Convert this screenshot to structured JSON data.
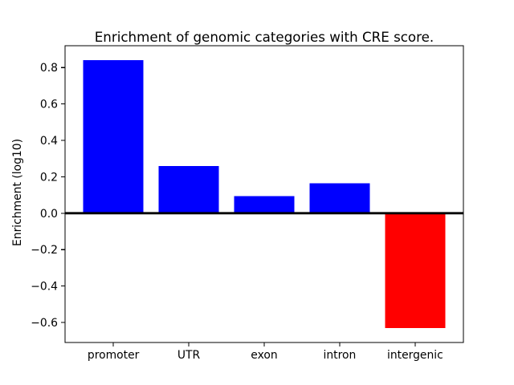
{
  "figure": {
    "background": "#ffffff"
  },
  "chart_data": {
    "type": "bar",
    "title": "Enrichment of genomic categories with CRE score.",
    "ylabel": "Enrichment (log10)",
    "xlabel": "",
    "categories": [
      "promoter",
      "UTR",
      "exon",
      "intron",
      "intergenic"
    ],
    "values": [
      0.84,
      0.26,
      0.095,
      0.165,
      -0.63
    ],
    "bar_colors": [
      "#0000ff",
      "#0000ff",
      "#0000ff",
      "#0000ff",
      "#ff0000"
    ],
    "positive_color": "#0000ff",
    "negative_color": "#ff0000",
    "yticks": [
      0.8,
      0.6,
      0.4,
      0.2,
      0.0,
      -0.2,
      -0.4,
      -0.6
    ],
    "ytick_labels": [
      "0.8",
      "0.6",
      "0.4",
      "0.2",
      "0.0",
      "−0.2",
      "−0.4",
      "−0.6"
    ],
    "ylim": [
      -0.71,
      0.92
    ],
    "bar_width_fraction": 0.8,
    "x_margin": 0.64,
    "grid": false,
    "legend": null,
    "zero_line": true,
    "zero_line_color": "#000000",
    "axis_color": "#000000",
    "text_color": "#000000"
  }
}
